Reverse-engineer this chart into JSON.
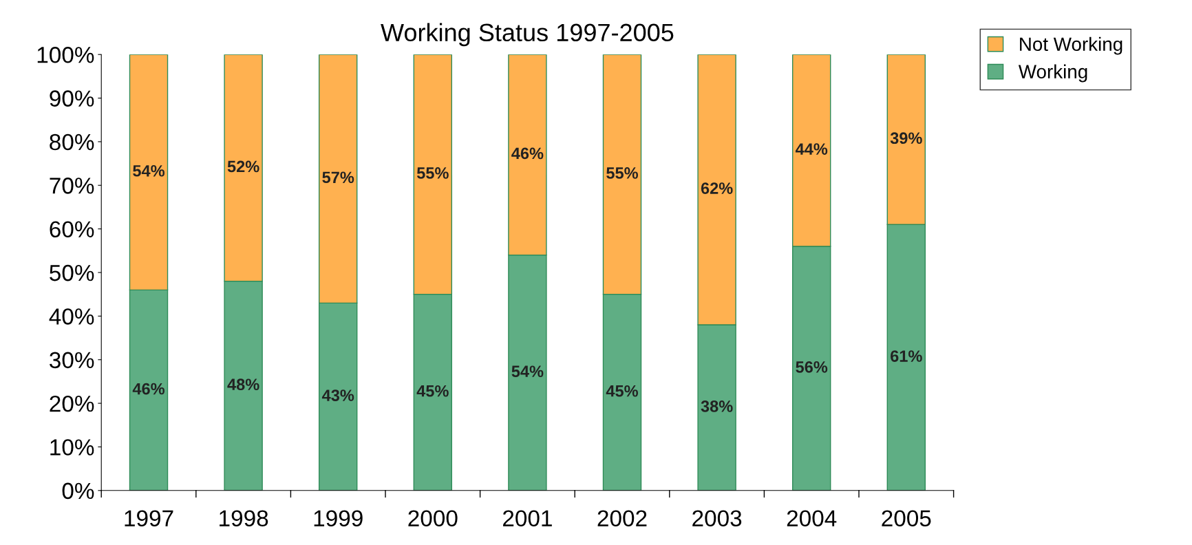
{
  "chart_data": {
    "type": "bar",
    "stacked": true,
    "title": "Working Status 1997-2005",
    "categories": [
      "1997",
      "1998",
      "1999",
      "2000",
      "2001",
      "2002",
      "2003",
      "2004",
      "2005"
    ],
    "series": [
      {
        "name": "Working",
        "color": "#5fae84",
        "values": [
          46,
          48,
          43,
          45,
          54,
          45,
          38,
          56,
          61
        ],
        "value_labels": [
          "46%",
          "48%",
          "43%",
          "45%",
          "54%",
          "45%",
          "38%",
          "56%",
          "61%"
        ]
      },
      {
        "name": "Not Working",
        "color": "#ffb150",
        "values": [
          54,
          52,
          57,
          55,
          46,
          55,
          62,
          44,
          39
        ],
        "value_labels": [
          "54%",
          "52%",
          "57%",
          "55%",
          "46%",
          "55%",
          "62%",
          "44%",
          "39%"
        ]
      }
    ],
    "ylim": [
      0,
      100
    ],
    "yticks": [
      {
        "value": 0,
        "label": "0%"
      },
      {
        "value": 10,
        "label": "10%"
      },
      {
        "value": 20,
        "label": "20%"
      },
      {
        "value": 30,
        "label": "30%"
      },
      {
        "value": 40,
        "label": "40%"
      },
      {
        "value": 50,
        "label": "50%"
      },
      {
        "value": 60,
        "label": "60%"
      },
      {
        "value": 70,
        "label": "70%"
      },
      {
        "value": 80,
        "label": "80%"
      },
      {
        "value": 90,
        "label": "90%"
      },
      {
        "value": 100,
        "label": "100%"
      }
    ],
    "grid": false,
    "legend": "top right"
  }
}
